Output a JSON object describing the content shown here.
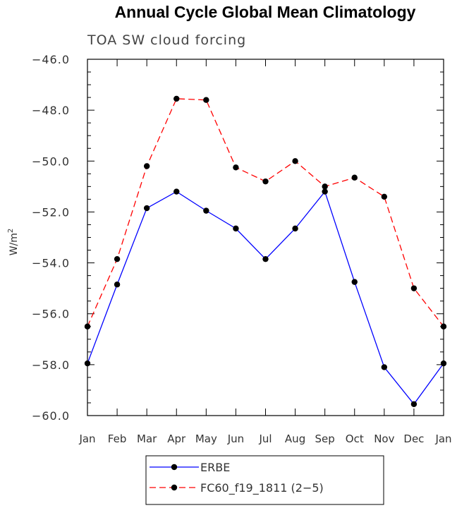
{
  "chart_data": {
    "type": "line",
    "title": "Annual Cycle Global Mean Climatology",
    "subtitle": "TOA SW cloud forcing",
    "xlabel": "",
    "ylabel_main": "W/m",
    "ylabel_sup": "2",
    "categories": [
      "Jan",
      "Feb",
      "Mar",
      "Apr",
      "May",
      "Jun",
      "Jul",
      "Aug",
      "Sep",
      "Oct",
      "Nov",
      "Dec",
      "Jan"
    ],
    "ylim": [
      -60.0,
      -46.0
    ],
    "yticks": [
      -60.0,
      -58.0,
      -56.0,
      -54.0,
      -52.0,
      -50.0,
      -48.0,
      -46.0
    ],
    "ytick_labels": [
      "−60.0",
      "−58.0",
      "−56.0",
      "−54.0",
      "−52.0",
      "−50.0",
      "−48.0",
      "−46.0"
    ],
    "series": [
      {
        "name": "ERBE",
        "color": "#0000ff",
        "dash": "solid",
        "values": [
          -57.95,
          -54.85,
          -51.85,
          -51.2,
          -51.95,
          -52.65,
          -53.85,
          -52.65,
          -51.2,
          -54.75,
          -58.1,
          -59.55,
          -57.95
        ]
      },
      {
        "name": "FC60_f19_1811 (2−5)",
        "color": "#ff0000",
        "dash": "dashed",
        "values": [
          -56.5,
          -53.85,
          -50.2,
          -47.55,
          -47.6,
          -50.25,
          -50.8,
          -50.0,
          -51.0,
          -50.65,
          -51.4,
          -55.0,
          -56.5
        ]
      }
    ],
    "legend_position": "bottom-center",
    "grid": false
  }
}
